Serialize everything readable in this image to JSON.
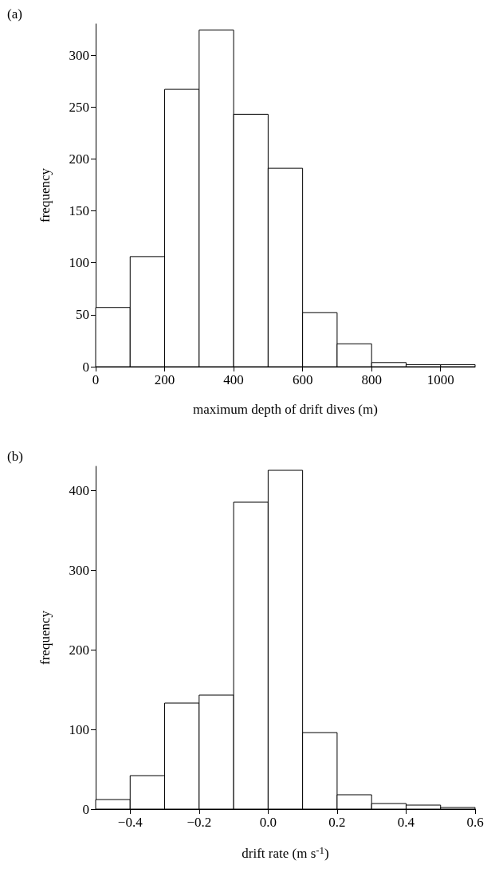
{
  "chart_data": [
    {
      "type": "histogram",
      "title": "(a)",
      "xlabel": "maximum depth of drift dives (m)",
      "ylabel": "frequency",
      "bins": [
        0,
        100,
        200,
        300,
        400,
        500,
        600,
        700,
        800,
        900,
        1000,
        1100
      ],
      "values": [
        57,
        106,
        267,
        324,
        243,
        191,
        52,
        22,
        4,
        2,
        2
      ],
      "color": "#ffffff",
      "xlim": [
        0,
        1100
      ],
      "xticks": [
        0,
        200,
        400,
        600,
        800,
        1000
      ],
      "ylim": [
        0,
        330
      ],
      "yticks": [
        0,
        50,
        100,
        150,
        200,
        250,
        300
      ],
      "grid": false
    },
    {
      "type": "histogram",
      "title": "(b)",
      "xlabel": "drift rate (m s$^{-1}$)",
      "ylabel": "frequency",
      "bins": [
        -0.5,
        -0.4,
        -0.3,
        -0.2,
        -0.1,
        0.0,
        0.1,
        0.2,
        0.3,
        0.4,
        0.5,
        0.6
      ],
      "values": [
        12,
        42,
        133,
        143,
        385,
        425,
        96,
        18,
        7,
        5,
        2
      ],
      "color": "#ffffff",
      "xlim": [
        -0.5,
        0.6
      ],
      "xticks": [
        {
          "value": -0.4,
          "label": "−0.4"
        },
        {
          "value": -0.2,
          "label": "−0.2"
        },
        {
          "value": 0,
          "label": "0.0"
        },
        {
          "value": 0.2,
          "label": "0.2"
        },
        {
          "value": 0.4,
          "label": "0.4"
        },
        {
          "value": 0.6,
          "label": "0.6"
        }
      ],
      "ylim": [
        0,
        430
      ],
      "yticks": [
        0,
        100,
        200,
        300,
        400
      ],
      "grid": false
    }
  ]
}
